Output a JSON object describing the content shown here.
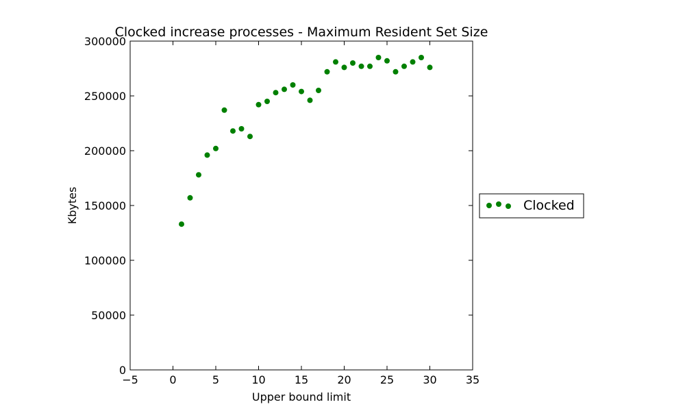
{
  "chart_data": {
    "type": "scatter",
    "title": "Clocked increase processes - Maximum Resident Set Size",
    "xlabel": "Upper bound limit",
    "ylabel": "Kbytes",
    "xlim": [
      -5,
      35
    ],
    "ylim": [
      0,
      300000
    ],
    "xticks": [
      -5,
      0,
      5,
      10,
      15,
      20,
      25,
      30,
      35
    ],
    "xtick_labels": [
      "−5",
      "0",
      "5",
      "10",
      "15",
      "20",
      "25",
      "30",
      "35"
    ],
    "yticks": [
      0,
      50000,
      100000,
      150000,
      200000,
      250000,
      300000
    ],
    "ytick_labels": [
      "0",
      "50000",
      "100000",
      "150000",
      "200000",
      "250000",
      "300000"
    ],
    "grid": false,
    "legend": {
      "placement": "outside-right",
      "entries": [
        "Clocked"
      ]
    },
    "series": [
      {
        "name": "Clocked",
        "color": "#008000",
        "x": [
          1,
          2,
          3,
          4,
          5,
          6,
          7,
          8,
          9,
          10,
          11,
          12,
          13,
          14,
          15,
          16,
          17,
          18,
          19,
          20,
          21,
          22,
          23,
          24,
          25,
          26,
          27,
          28,
          29,
          30
        ],
        "y": [
          133000,
          157000,
          178000,
          196000,
          202000,
          237000,
          218000,
          220000,
          213000,
          242000,
          245000,
          253000,
          256000,
          260000,
          254000,
          246000,
          255000,
          272000,
          281000,
          276000,
          280000,
          277000,
          277000,
          285000,
          282000,
          272000,
          277000,
          281000,
          285000,
          276000
        ]
      }
    ]
  }
}
